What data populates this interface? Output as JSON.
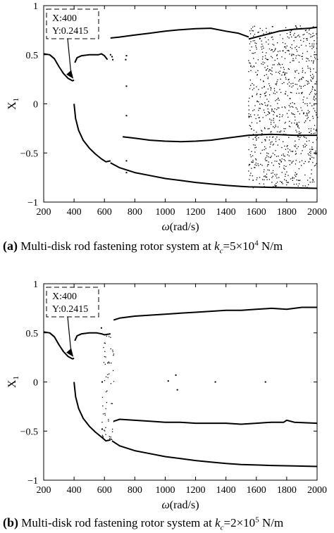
{
  "chart_data": [
    {
      "type": "scatter",
      "panel_label": "(a)",
      "caption_text": "Multi-disk rod fastening rotor system at",
      "caption_param": "k",
      "caption_param_sub": "c",
      "caption_value": "=5×10",
      "caption_value_exp": "4",
      "caption_unit": " N/m",
      "xlabel_symbol": "ω",
      "xlabel_unit": "(rad/s)",
      "ylabel_symbol": "X",
      "ylabel_sub": "1",
      "xlim": [
        200,
        2000
      ],
      "ylim": [
        -1,
        1
      ],
      "xticks": [
        "200",
        "400",
        "600",
        "800",
        "1000",
        "1200",
        "1400",
        "1600",
        "1800",
        "2000"
      ],
      "yticks": [
        "-1",
        "-0.5",
        "0",
        "0.5",
        "1"
      ],
      "annotation": {
        "x_label": "X:400",
        "y_label": "Y:0.2415",
        "x": 400,
        "y": 0.2415
      },
      "branches": [
        {
          "name": "",
          "points": [
            [
              200,
              0.51
            ],
            [
              240,
              0.5
            ],
            [
              270,
              0.46
            ],
            [
              300,
              0.38
            ],
            [
              330,
              0.31
            ],
            [
              360,
              0.26
            ],
            [
              390,
              0.235
            ],
            [
              400,
              0.2415
            ]
          ]
        },
        {
          "name": "",
          "points": [
            [
              405,
              0.42
            ],
            [
              420,
              0.47
            ],
            [
              450,
              0.49
            ],
            [
              500,
              0.5
            ],
            [
              560,
              0.5
            ],
            [
              580,
              0.51
            ],
            [
              600,
              0.49
            ],
            [
              620,
              0.45
            ]
          ]
        },
        {
          "name": "",
          "points": [
            [
              400,
              0.0
            ],
            [
              410,
              -0.15
            ],
            [
              430,
              -0.27
            ],
            [
              460,
              -0.37
            ],
            [
              500,
              -0.45
            ],
            [
              540,
              -0.51
            ],
            [
              580,
              -0.56
            ],
            [
              610,
              -0.59
            ],
            [
              640,
              -0.58
            ]
          ]
        },
        {
          "name": "",
          "points": [
            [
              640,
              -0.6
            ],
            [
              700,
              -0.65
            ],
            [
              800,
              -0.7
            ],
            [
              900,
              -0.73
            ],
            [
              1000,
              -0.76
            ],
            [
              1100,
              -0.78
            ],
            [
              1200,
              -0.8
            ],
            [
              1300,
              -0.815
            ],
            [
              1400,
              -0.83
            ],
            [
              1500,
              -0.84
            ],
            [
              1550,
              -0.845
            ],
            [
              1700,
              -0.85
            ],
            [
              1850,
              -0.855
            ],
            [
              2000,
              -0.86
            ]
          ]
        },
        {
          "name": "",
          "points": [
            [
              640,
              0.67
            ],
            [
              700,
              0.68
            ],
            [
              800,
              0.7
            ],
            [
              900,
              0.72
            ],
            [
              1000,
              0.74
            ],
            [
              1100,
              0.755
            ],
            [
              1200,
              0.765
            ],
            [
              1300,
              0.77
            ],
            [
              1400,
              0.74
            ],
            [
              1480,
              0.72
            ],
            [
              1550,
              0.68
            ]
          ]
        },
        {
          "name": "",
          "points": [
            [
              720,
              -0.335
            ],
            [
              800,
              -0.35
            ],
            [
              900,
              -0.37
            ],
            [
              1000,
              -0.38
            ],
            [
              1100,
              -0.385
            ],
            [
              1200,
              -0.38
            ],
            [
              1300,
              -0.37
            ],
            [
              1400,
              -0.35
            ],
            [
              1500,
              -0.33
            ],
            [
              1550,
              -0.32
            ],
            [
              1700,
              -0.31
            ],
            [
              1850,
              -0.32
            ],
            [
              2000,
              -0.32
            ]
          ]
        },
        {
          "name": "",
          "points": [
            [
              1550,
              0.66
            ],
            [
              1650,
              0.7
            ],
            [
              1750,
              0.74
            ],
            [
              1850,
              0.76
            ],
            [
              1950,
              0.77
            ],
            [
              2000,
              0.78
            ]
          ]
        }
      ],
      "scatter_regions": [
        {
          "xrange": [
            1545,
            2000
          ],
          "yrange": [
            -0.85,
            0.8
          ],
          "count": 900
        }
      ],
      "isolated_points": [
        [
          640,
          0.5
        ],
        [
          650,
          0.48
        ],
        [
          655,
          0.45
        ],
        [
          740,
          0.45
        ],
        [
          745,
          0.49
        ],
        [
          745,
          0.18
        ],
        [
          745,
          -0.12
        ],
        [
          745,
          -0.58
        ],
        [
          745,
          -0.7
        ]
      ]
    },
    {
      "type": "scatter",
      "panel_label": "(b)",
      "caption_text": "Multi-disk rod fastening rotor system at",
      "caption_param": "k",
      "caption_param_sub": "c",
      "caption_value": "=2×10",
      "caption_value_exp": "5",
      "caption_unit": " N/m",
      "xlabel_symbol": "ω",
      "xlabel_unit": "(rad/s)",
      "ylabel_symbol": "X",
      "ylabel_sub": "1",
      "xlim": [
        200,
        2000
      ],
      "ylim": [
        -1,
        1
      ],
      "xticks": [
        "200",
        "400",
        "600",
        "800",
        "1000",
        "1200",
        "1400",
        "1600",
        "1800",
        "2000"
      ],
      "yticks": [
        "-1",
        "-0.5",
        "0",
        "0.5",
        "1"
      ],
      "annotation": {
        "x_label": "X:400",
        "y_label": "Y:0.2415",
        "x": 400,
        "y": 0.2415
      },
      "branches": [
        {
          "name": "",
          "points": [
            [
              200,
              0.51
            ],
            [
              240,
              0.5
            ],
            [
              270,
              0.46
            ],
            [
              300,
              0.38
            ],
            [
              330,
              0.31
            ],
            [
              360,
              0.26
            ],
            [
              390,
              0.235
            ],
            [
              400,
              0.2415
            ]
          ]
        },
        {
          "name": "",
          "points": [
            [
              405,
              0.42
            ],
            [
              420,
              0.47
            ],
            [
              450,
              0.49
            ],
            [
              500,
              0.5
            ],
            [
              550,
              0.5
            ],
            [
              580,
              0.49
            ],
            [
              600,
              0.48
            ],
            [
              640,
              0.49
            ]
          ]
        },
        {
          "name": "",
          "points": [
            [
              400,
              0.0
            ],
            [
              410,
              -0.15
            ],
            [
              430,
              -0.27
            ],
            [
              460,
              -0.37
            ],
            [
              500,
              -0.45
            ],
            [
              540,
              -0.51
            ],
            [
              580,
              -0.56
            ],
            [
              610,
              -0.6
            ],
            [
              640,
              -0.59
            ]
          ]
        },
        {
          "name": "",
          "points": [
            [
              650,
              -0.6
            ],
            [
              700,
              -0.65
            ],
            [
              800,
              -0.7
            ],
            [
              900,
              -0.73
            ],
            [
              1000,
              -0.76
            ],
            [
              1100,
              -0.78
            ],
            [
              1200,
              -0.8
            ],
            [
              1300,
              -0.815
            ],
            [
              1400,
              -0.83
            ],
            [
              1500,
              -0.84
            ],
            [
              1600,
              -0.845
            ],
            [
              1700,
              -0.85
            ],
            [
              1850,
              -0.855
            ],
            [
              2000,
              -0.86
            ]
          ]
        },
        {
          "name": "",
          "points": [
            [
              660,
              0.63
            ],
            [
              700,
              0.65
            ],
            [
              800,
              0.67
            ],
            [
              900,
              0.68
            ],
            [
              1000,
              0.69
            ],
            [
              1100,
              0.7
            ],
            [
              1200,
              0.71
            ],
            [
              1300,
              0.72
            ],
            [
              1400,
              0.73
            ],
            [
              1500,
              0.73
            ],
            [
              1600,
              0.74
            ],
            [
              1700,
              0.75
            ],
            [
              1800,
              0.74
            ],
            [
              1850,
              0.75
            ],
            [
              1900,
              0.76
            ],
            [
              2000,
              0.76
            ]
          ]
        },
        {
          "name": "",
          "points": [
            [
              660,
              -0.4
            ],
            [
              700,
              -0.38
            ],
            [
              800,
              -0.39
            ],
            [
              900,
              -0.4
            ],
            [
              1000,
              -0.41
            ],
            [
              1100,
              -0.41
            ],
            [
              1200,
              -0.42
            ],
            [
              1300,
              -0.42
            ],
            [
              1400,
              -0.42
            ],
            [
              1500,
              -0.43
            ],
            [
              1600,
              -0.42
            ],
            [
              1700,
              -0.41
            ],
            [
              1780,
              -0.41
            ],
            [
              1800,
              -0.39
            ],
            [
              1850,
              -0.41
            ],
            [
              2000,
              -0.42
            ]
          ]
        }
      ],
      "scatter_regions": [
        {
          "xrange": [
            580,
            660
          ],
          "yrange": [
            -0.6,
            0.5
          ],
          "count": 60
        }
      ],
      "isolated_points": [
        [
          1020,
          0.01
        ],
        [
          1070,
          0.07
        ],
        [
          1330,
          0.0
        ],
        [
          1660,
          0.0
        ],
        [
          1080,
          -0.08
        ],
        [
          580,
          0.55
        ],
        [
          585,
          0.0
        ],
        [
          585,
          -0.48
        ]
      ]
    }
  ]
}
